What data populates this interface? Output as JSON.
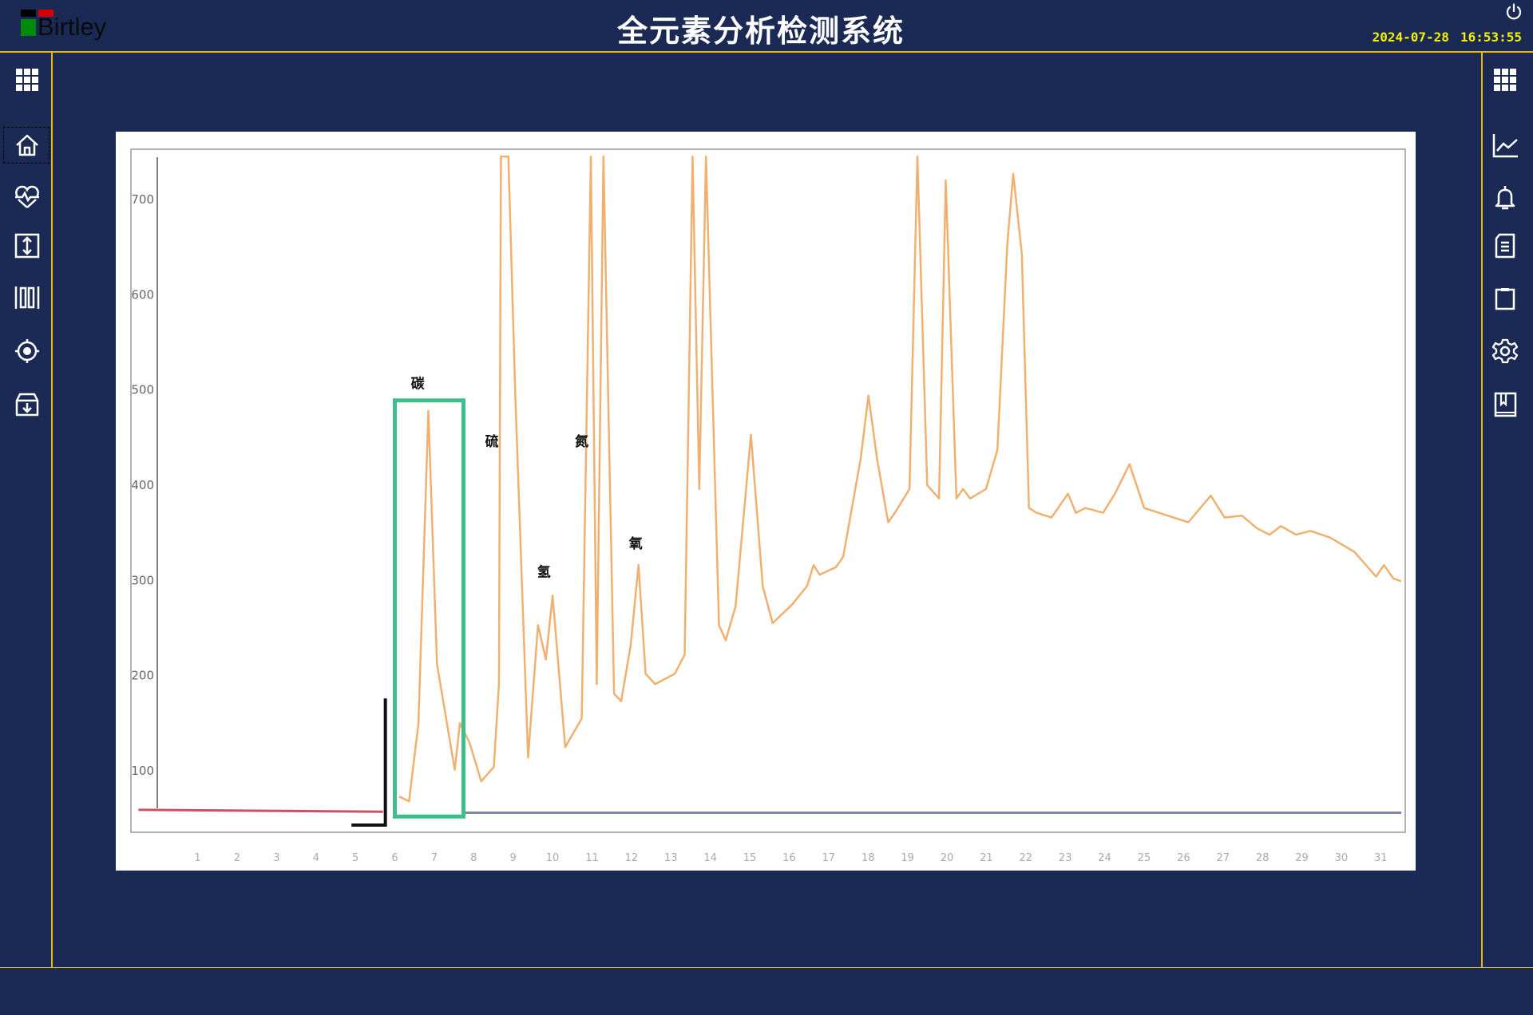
{
  "header": {
    "logo_text": "Birtley",
    "title": "全元素分析检测系统",
    "date": "2024-07-28",
    "time": "16:53:55",
    "power_icon": "power-icon"
  },
  "colors": {
    "background": "#1a2a54",
    "accent_line": "#e8b900",
    "clock": "#f2f200",
    "trace": "#f0b070",
    "highlight_box": "#3cbf8a",
    "baseline_pre": "#d05060",
    "baseline_post": "#8088a8"
  },
  "left_sidebar": [
    {
      "icon": "grid-menu-icon"
    },
    {
      "icon": "home-icon",
      "selected": true
    },
    {
      "icon": "heart-pulse-icon"
    },
    {
      "icon": "vertical-arrows-icon"
    },
    {
      "icon": "barcode-icon"
    },
    {
      "icon": "target-icon"
    },
    {
      "icon": "archive-download-icon"
    }
  ],
  "right_sidebar": [
    {
      "icon": "grid-menu-icon"
    },
    {
      "icon": "line-chart-icon"
    },
    {
      "icon": "bell-icon"
    },
    {
      "icon": "document-icon"
    },
    {
      "icon": "clipboard-icon"
    },
    {
      "icon": "gear-icon"
    },
    {
      "icon": "book-icon"
    }
  ],
  "chart_data": {
    "type": "line",
    "title": "",
    "xlabel": "",
    "ylabel": "",
    "xlim": [
      -0.59,
      31.52
    ],
    "ylim": [
      50,
      752
    ],
    "x_ticks": [
      1,
      2,
      3,
      4,
      5,
      6,
      7,
      8,
      9,
      10,
      11,
      12,
      13,
      14,
      15,
      16,
      17,
      18,
      19,
      20,
      21,
      22,
      23,
      24,
      25,
      26,
      27,
      28,
      29,
      30,
      31
    ],
    "y_ticks": [
      100,
      200,
      300,
      400,
      500,
      600,
      700
    ],
    "grid": false,
    "series": [
      {
        "role": "baseline-pre",
        "points": [
          [
            -0.5,
            59
          ],
          [
            5.7,
            57
          ]
        ]
      },
      {
        "role": "baseline-post",
        "points": [
          [
            7.75,
            56
          ],
          [
            31.52,
            56
          ]
        ]
      },
      {
        "role": "signal",
        "points": [
          [
            6.11,
            73
          ],
          [
            6.36,
            68
          ],
          [
            6.6,
            150
          ],
          [
            6.85,
            478
          ],
          [
            7.07,
            212
          ],
          [
            7.52,
            101
          ],
          [
            7.65,
            150
          ],
          [
            7.89,
            130
          ],
          [
            8.19,
            89
          ],
          [
            8.51,
            104
          ],
          [
            8.64,
            191
          ],
          [
            8.69,
            745
          ],
          [
            8.88,
            745
          ],
          [
            9.06,
            489
          ],
          [
            9.38,
            114
          ],
          [
            9.63,
            253
          ],
          [
            9.83,
            217
          ],
          [
            10.0,
            284
          ],
          [
            10.32,
            125
          ],
          [
            10.74,
            155
          ],
          [
            10.97,
            745
          ],
          [
            11.12,
            191
          ],
          [
            11.29,
            745
          ],
          [
            11.56,
            181
          ],
          [
            11.74,
            173
          ],
          [
            11.98,
            232
          ],
          [
            12.18,
            316
          ],
          [
            12.36,
            202
          ],
          [
            12.6,
            191
          ],
          [
            13.1,
            202
          ],
          [
            13.35,
            222
          ],
          [
            13.55,
            745
          ],
          [
            13.72,
            396
          ],
          [
            13.89,
            745
          ],
          [
            14.22,
            253
          ],
          [
            14.39,
            237
          ],
          [
            14.64,
            273
          ],
          [
            15.03,
            453
          ],
          [
            15.33,
            294
          ],
          [
            15.58,
            255
          ],
          [
            16.08,
            275
          ],
          [
            16.45,
            294
          ],
          [
            16.62,
            316
          ],
          [
            16.77,
            306
          ],
          [
            17.19,
            314
          ],
          [
            17.37,
            325
          ],
          [
            17.81,
            427
          ],
          [
            18.01,
            494
          ],
          [
            18.23,
            427
          ],
          [
            18.51,
            361
          ],
          [
            18.68,
            371
          ],
          [
            19.05,
            396
          ],
          [
            19.25,
            745
          ],
          [
            19.5,
            400
          ],
          [
            19.8,
            386
          ],
          [
            19.97,
            720
          ],
          [
            20.24,
            386
          ],
          [
            20.41,
            396
          ],
          [
            20.59,
            386
          ],
          [
            20.99,
            396
          ],
          [
            21.28,
            437
          ],
          [
            21.53,
            653
          ],
          [
            21.68,
            727
          ],
          [
            21.9,
            643
          ],
          [
            22.08,
            376
          ],
          [
            22.27,
            371
          ],
          [
            22.65,
            366
          ],
          [
            23.07,
            391
          ],
          [
            23.27,
            371
          ],
          [
            23.51,
            376
          ],
          [
            23.96,
            371
          ],
          [
            24.26,
            391
          ],
          [
            24.63,
            422
          ],
          [
            25.0,
            376
          ],
          [
            25.37,
            371
          ],
          [
            26.12,
            361
          ],
          [
            26.69,
            389
          ],
          [
            27.04,
            366
          ],
          [
            27.48,
            368
          ],
          [
            27.85,
            355
          ],
          [
            28.18,
            348
          ],
          [
            28.47,
            357
          ],
          [
            28.85,
            348
          ],
          [
            29.22,
            352
          ],
          [
            29.71,
            345
          ],
          [
            30.33,
            330
          ],
          [
            30.88,
            304
          ],
          [
            31.08,
            316
          ],
          [
            31.32,
            302
          ],
          [
            31.52,
            299
          ]
        ]
      }
    ],
    "highlight_box": {
      "x": [
        6.0,
        7.74
      ],
      "y": [
        52,
        489
      ]
    },
    "marker": {
      "x": 5.76,
      "y": [
        43,
        176
      ],
      "foot_x": [
        4.9,
        5.76
      ]
    },
    "annotations": [
      {
        "text": "碳",
        "x": 6.58,
        "y": 502
      },
      {
        "text": "硫",
        "x": 8.46,
        "y": 441
      },
      {
        "text": "氢",
        "x": 9.78,
        "y": 304
      },
      {
        "text": "氮",
        "x": 10.74,
        "y": 441
      },
      {
        "text": "氧",
        "x": 12.11,
        "y": 334
      }
    ]
  }
}
